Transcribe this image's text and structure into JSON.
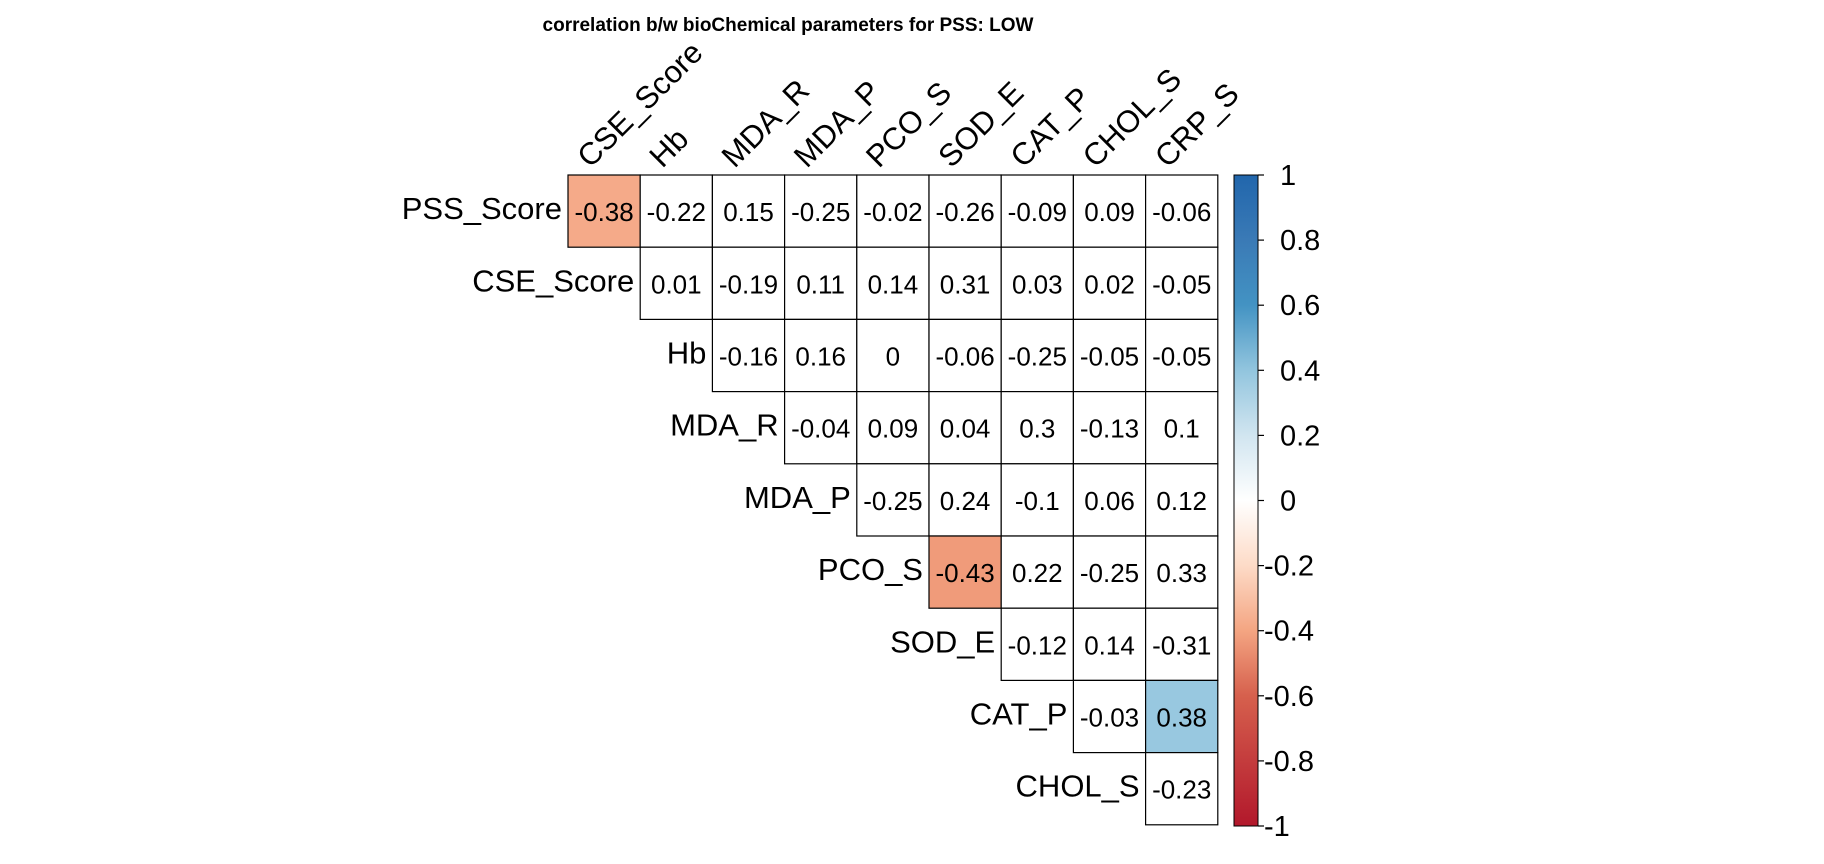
{
  "chart_data": {
    "type": "heatmap",
    "title": "correlation b/w bioChemical parameters for PSS: LOW",
    "row_labels": [
      "PSS_Score",
      "CSE_Score",
      "Hb",
      "MDA_R",
      "MDA_P",
      "PCO_S",
      "SOD_E",
      "CAT_P",
      "CHOL_S"
    ],
    "col_labels": [
      "CSE_Score",
      "Hb",
      "MDA_R",
      "MDA_P",
      "PCO_S",
      "SOD_E",
      "CAT_P",
      "CHOL_S",
      "CRP_S"
    ],
    "cells": [
      [
        "-0.38",
        "-0.22",
        "0.15",
        "-0.25",
        "-0.02",
        "-0.26",
        "-0.09",
        "0.09",
        "-0.06"
      ],
      [
        null,
        "0.01",
        "-0.19",
        "0.11",
        "0.14",
        "0.31",
        "0.03",
        "0.02",
        "-0.05"
      ],
      [
        null,
        null,
        "-0.16",
        "0.16",
        "0",
        "-0.06",
        "-0.25",
        "-0.05",
        "-0.05"
      ],
      [
        null,
        null,
        null,
        "-0.04",
        "0.09",
        "0.04",
        "0.3",
        "-0.13",
        "0.1"
      ],
      [
        null,
        null,
        null,
        null,
        "-0.25",
        "0.24",
        "-0.1",
        "0.06",
        "0.12"
      ],
      [
        null,
        null,
        null,
        null,
        null,
        "-0.43",
        "0.22",
        "-0.25",
        "0.33"
      ],
      [
        null,
        null,
        null,
        null,
        null,
        null,
        "-0.12",
        "0.14",
        "-0.31"
      ],
      [
        null,
        null,
        null,
        null,
        null,
        null,
        null,
        "-0.03",
        "0.38"
      ],
      [
        null,
        null,
        null,
        null,
        null,
        null,
        null,
        null,
        "-0.23"
      ]
    ],
    "highlighted": [
      [
        0,
        0
      ],
      [
        5,
        5
      ],
      [
        7,
        8
      ]
    ],
    "colorbar": {
      "ticks": [
        "1",
        "0.8",
        "0.6",
        "0.4",
        "0.2",
        "0",
        "-0.2",
        "-0.4",
        "-0.6",
        "-0.8",
        "-1"
      ],
      "range": [
        -1,
        1
      ],
      "colors": {
        "low": "#b2182b",
        "mid": "#ffffff",
        "high": "#2166ac"
      }
    }
  }
}
